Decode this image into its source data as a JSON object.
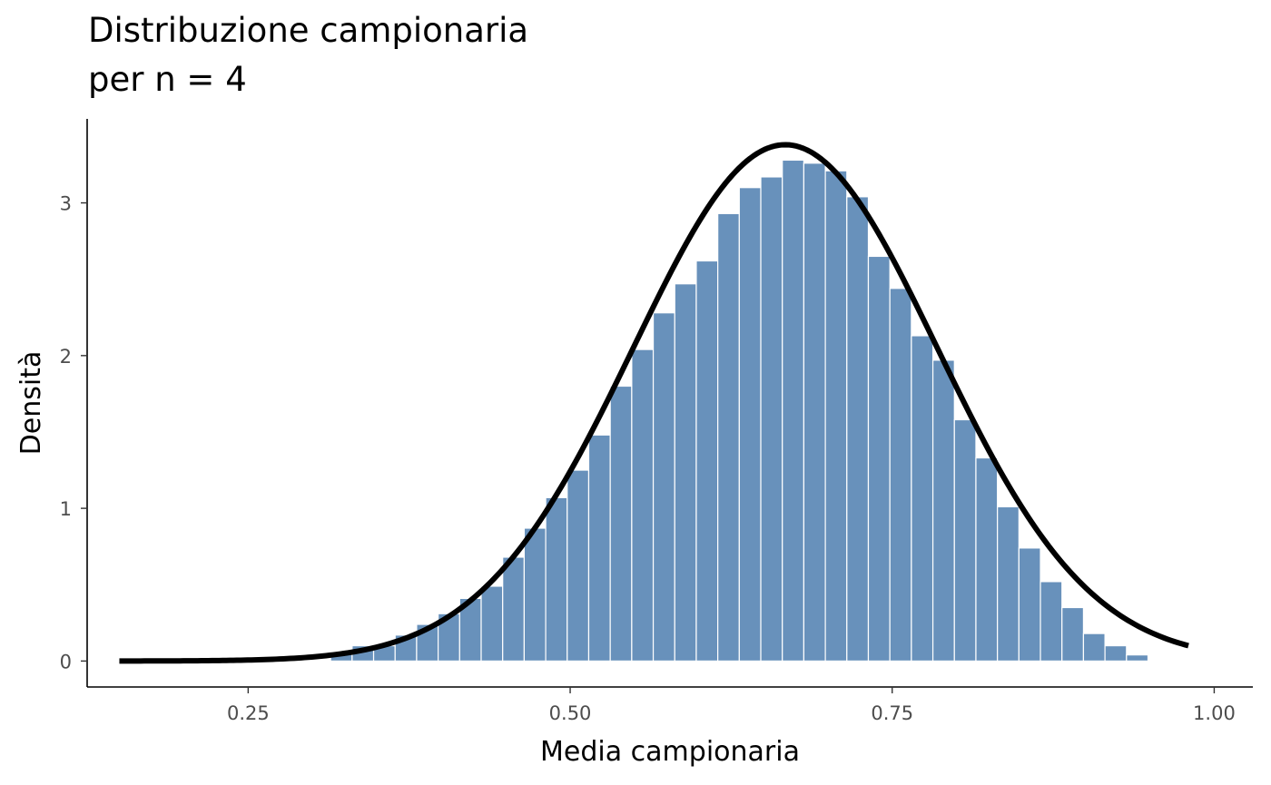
{
  "chart_data": {
    "type": "bar",
    "title_lines": [
      "Distribuzione campionaria",
      "per n = 4"
    ],
    "xlabel": "Media campionaria",
    "ylabel": "Densità",
    "xlim": [
      0.125,
      1.03
    ],
    "ylim": [
      -0.17,
      3.55
    ],
    "x_ticks": [
      0.25,
      0.5,
      0.75,
      1.0
    ],
    "x_tick_labels": [
      "0.25",
      "0.50",
      "0.75",
      "1.00"
    ],
    "y_ticks": [
      0,
      1,
      2,
      3
    ],
    "y_tick_labels": [
      "0",
      "1",
      "2",
      "3"
    ],
    "grid": false,
    "histogram": {
      "bin_width": 0.0167,
      "bin_starts": [
        0.314,
        0.3307,
        0.3474,
        0.3641,
        0.3808,
        0.3975,
        0.4142,
        0.4309,
        0.4476,
        0.4643,
        0.481,
        0.4977,
        0.5144,
        0.5311,
        0.5478,
        0.5645,
        0.5812,
        0.5979,
        0.6146,
        0.6313,
        0.648,
        0.6647,
        0.6814,
        0.6981,
        0.7148,
        0.7315,
        0.7482,
        0.7649,
        0.7816,
        0.7983,
        0.815,
        0.8317,
        0.8484,
        0.8651,
        0.8818,
        0.8985,
        0.9152,
        0.9319,
        0.9486
      ],
      "densities": [
        0.05,
        0.1,
        0.1,
        0.17,
        0.24,
        0.31,
        0.41,
        0.49,
        0.68,
        0.87,
        1.07,
        1.25,
        1.48,
        1.8,
        2.04,
        2.28,
        2.47,
        2.62,
        2.93,
        3.1,
        3.17,
        3.28,
        3.26,
        3.21,
        3.04,
        2.65,
        2.44,
        2.13,
        1.97,
        1.58,
        1.33,
        1.01,
        0.74,
        0.52,
        0.35,
        0.18,
        0.1,
        0.04,
        0.0
      ],
      "color": "#6891bb",
      "edge_color": "#ffffff"
    },
    "density_curve": {
      "distribution": "normal",
      "mean": 0.667,
      "sd": 0.118,
      "x_range": [
        0.15,
        0.98
      ],
      "color": "#000000"
    }
  }
}
